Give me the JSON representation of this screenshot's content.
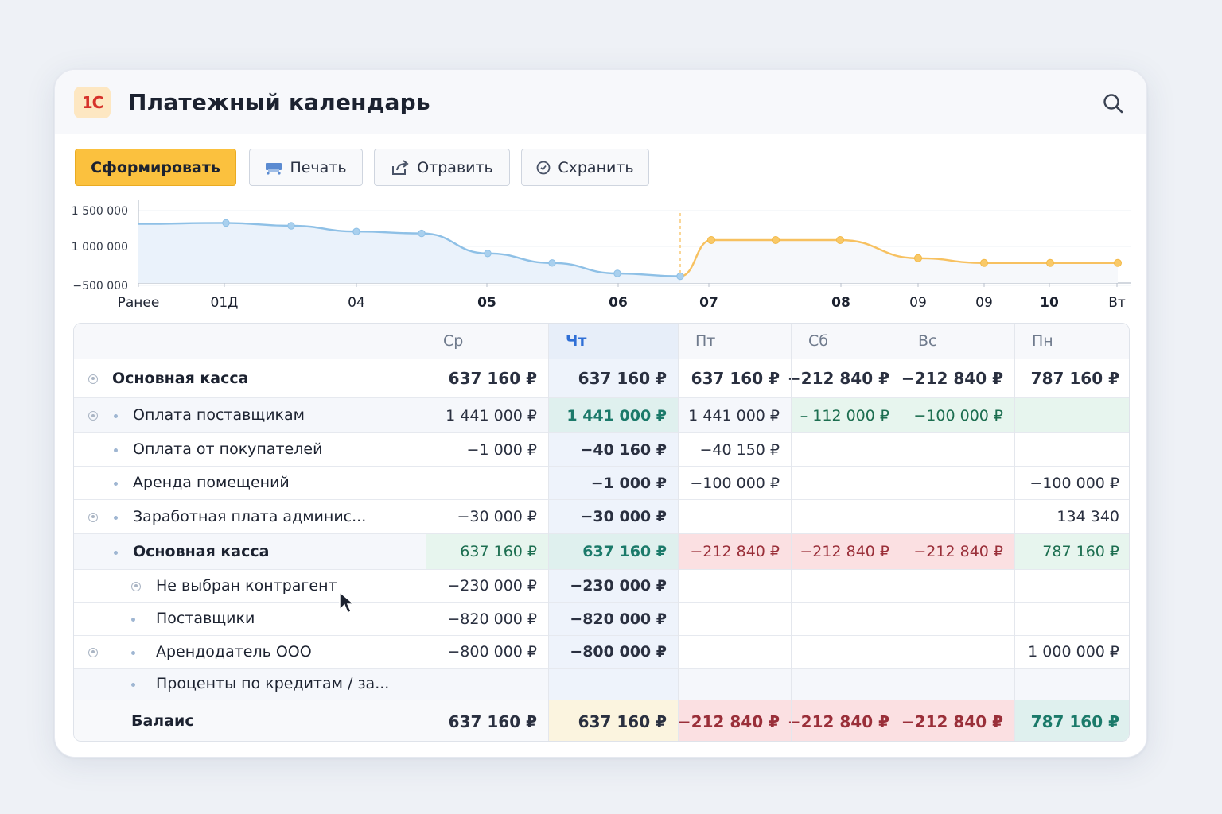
{
  "app": {
    "logo": "1С",
    "title": "Платежный календарь"
  },
  "toolbar": {
    "generate": "Сформировать",
    "print": "Печать",
    "send": "Отравить",
    "save": "Схранить"
  },
  "chart_data": {
    "type": "line",
    "y_ticks": [
      "1 500 000",
      "1 000 000",
      "−500 000"
    ],
    "x_ticks": [
      "Ранее",
      "01Д",
      "04",
      "05",
      "06",
      "07",
      "08",
      "09",
      "09",
      "10",
      "Вт"
    ],
    "series": [
      {
        "values": [
          1370000,
          1380000,
          1350000,
          1290000,
          1270000,
          1060000,
          960000,
          850000,
          820000
        ]
      },
      {
        "values": [
          820000,
          1200000,
          1200000,
          1200000,
          1010000,
          960000,
          960000,
          960000
        ]
      }
    ],
    "colors": {
      "past": "#8ec0e6",
      "forecast": "#f7c160"
    }
  },
  "table": {
    "columns": [
      "Ср",
      "Чт",
      "Пт",
      "Сб",
      "Вс",
      "Пн"
    ],
    "rows": [
      {
        "label": "Основная касса",
        "values": [
          "637 160 ₽",
          "637 160 ₽",
          "637 160 ₽",
          "−212 840 ₽",
          "−212 840 ₽",
          "787 160 ₽"
        ]
      },
      {
        "label": "Оплата поставщикам",
        "values": [
          "1 441 000 ₽",
          "1 441 000 ₽",
          "1 441 000 ₽",
          "– 112 000 ₽",
          "−100 000 ₽",
          ""
        ]
      },
      {
        "label": "Оплата от покупателей",
        "values": [
          "−1 000 ₽",
          "−40 160 ₽",
          "−40 150 ₽",
          "",
          "",
          ""
        ]
      },
      {
        "label": "Аренда помещений",
        "values": [
          "",
          "−1 000 ₽",
          "−100 000 ₽",
          "",
          "",
          "−100 000 ₽"
        ]
      },
      {
        "label": "Заработная плата админис...",
        "values": [
          "−30 000 ₽",
          "−30 000 ₽",
          "",
          "",
          "",
          "134 340"
        ]
      },
      {
        "label": "Основная касса",
        "values": [
          "637 160 ₽",
          "637 160 ₽",
          "−212 840 ₽",
          "−212 840 ₽",
          "−212 840 ₽",
          "787 160 ₽"
        ]
      },
      {
        "label": "Не выбран контрагент",
        "values": [
          "−230 000 ₽",
          "−230 000 ₽",
          "",
          "",
          "",
          ""
        ]
      },
      {
        "label": "Поставщики",
        "values": [
          "−820 000 ₽",
          "−820 000 ₽",
          "",
          "",
          "",
          ""
        ]
      },
      {
        "label": "Арендодатель ООО",
        "values": [
          "−800 000 ₽",
          "−800 000 ₽",
          "",
          "",
          "",
          "1 000 000 ₽"
        ]
      },
      {
        "label": "Проценты по кредитам / за...",
        "values": [
          "",
          "",
          "",
          "",
          "",
          ""
        ]
      },
      {
        "label": "Балаис",
        "values": [
          "637 160 ₽",
          "637 160 ₽",
          "−212 840 ₽",
          "−212 840 ₽",
          "−212 840 ₽",
          "787 160 ₽"
        ]
      }
    ]
  }
}
